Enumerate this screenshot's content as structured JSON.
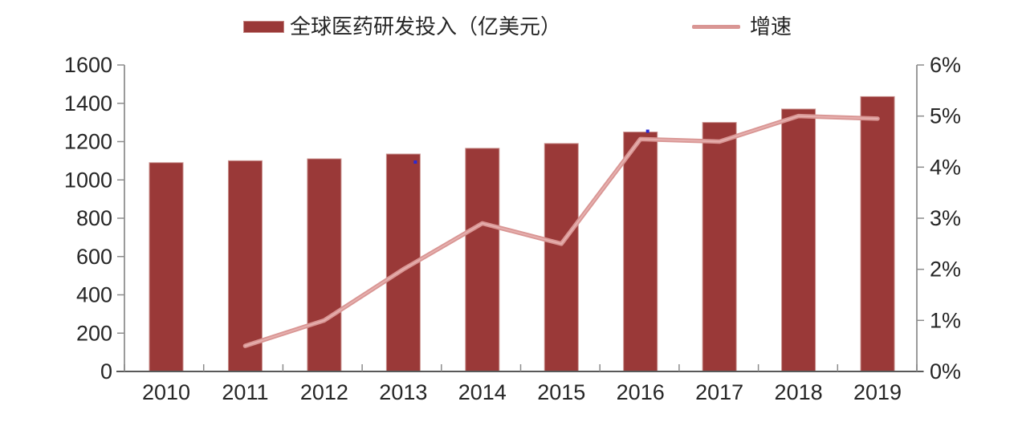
{
  "legend": {
    "bar_label": "全球医药研发投入（亿美元）",
    "line_label": "增速"
  },
  "colors": {
    "bar": "#9A3938",
    "bar_edge": "#C9908D",
    "line": "#D99694",
    "line_highlight": "#E7B3B1",
    "side_axis": "#9B9B9B",
    "bottom_axis": "#595959",
    "tick": "#8C8C8C",
    "text": "#262626",
    "artifact_dot": "#2A2AD4"
  },
  "chart_data": {
    "type": "bar+line combo",
    "title": "",
    "categories": [
      "2010",
      "2011",
      "2012",
      "2013",
      "2014",
      "2015",
      "2016",
      "2017",
      "2018",
      "2019"
    ],
    "series": [
      {
        "name": "全球医药研发投入（亿美元）",
        "type": "bar",
        "axis": "left",
        "values": [
          1090,
          1100,
          1110,
          1135,
          1165,
          1190,
          1250,
          1300,
          1370,
          1435
        ]
      },
      {
        "name": "增速",
        "type": "line",
        "axis": "right",
        "values_pct": [
          null,
          0.5,
          1.0,
          2.0,
          2.9,
          2.5,
          4.55,
          4.5,
          5.0,
          4.95
        ]
      }
    ],
    "left_axis": {
      "min": 0,
      "max": 1600,
      "step": 200,
      "tick_labels": [
        "0",
        "200",
        "400",
        "600",
        "800",
        "1000",
        "1200",
        "1400",
        "1600"
      ]
    },
    "right_axis": {
      "min": 0,
      "max": 6,
      "step": 1,
      "tick_labels": [
        "0%",
        "1%",
        "2%",
        "3%",
        "4%",
        "5%",
        "6%"
      ]
    },
    "grid": false,
    "legend_position": "top",
    "artifact_dots": [
      {
        "category": "2013"
      },
      {
        "category": "2016"
      }
    ]
  }
}
